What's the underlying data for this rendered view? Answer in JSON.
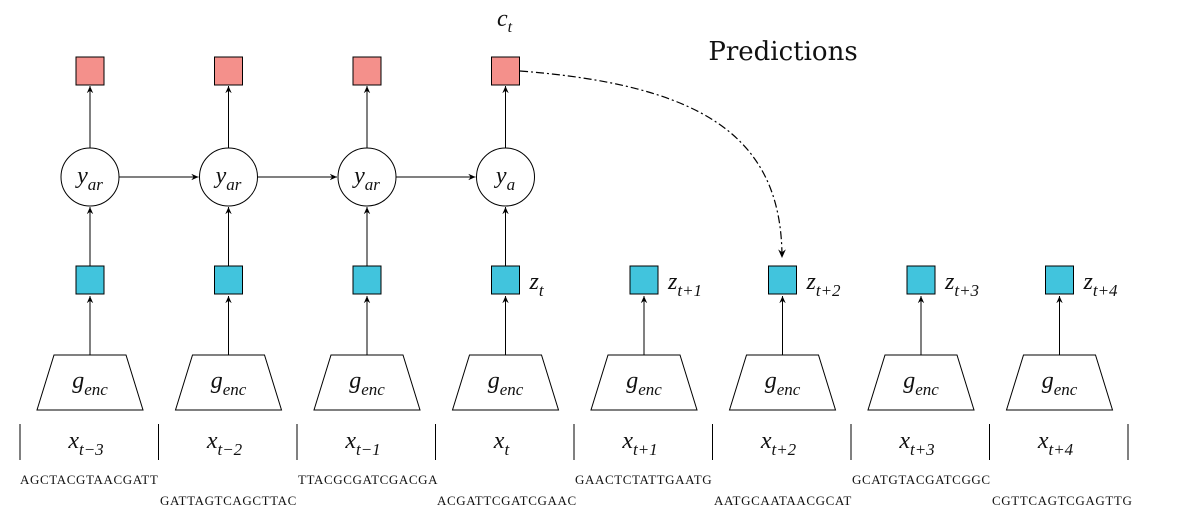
{
  "title": "Predictions",
  "context_label": {
    "base": "c",
    "sub": "t"
  },
  "colors": {
    "prediction": "#f4908b",
    "latent": "#41c4dd",
    "stroke": "#000000"
  },
  "columns": [
    {
      "x_sub": "t−3",
      "enc_base": "g",
      "enc_sub": "enc",
      "ar_base": "y",
      "ar_sub": "ar",
      "has_ar": true,
      "z_label": false
    },
    {
      "x_sub": "t−2",
      "enc_base": "g",
      "enc_sub": "enc",
      "ar_base": "y",
      "ar_sub": "ar",
      "has_ar": true,
      "z_label": false
    },
    {
      "x_sub": "t−1",
      "enc_base": "g",
      "enc_sub": "enc",
      "ar_base": "y",
      "ar_sub": "ar",
      "has_ar": true,
      "z_label": false
    },
    {
      "x_sub": "t",
      "enc_base": "g",
      "enc_sub": "enc",
      "ar_base": "y",
      "ar_sub": "a",
      "has_ar": true,
      "z_label": true,
      "z_sub": "t"
    },
    {
      "x_sub": "t+1",
      "enc_base": "g",
      "enc_sub": "enc",
      "has_ar": false,
      "z_label": true,
      "z_sub": "t+1"
    },
    {
      "x_sub": "t+2",
      "enc_base": "g",
      "enc_sub": "enc",
      "has_ar": false,
      "z_label": true,
      "z_sub": "t+2"
    },
    {
      "x_sub": "t+3",
      "enc_base": "g",
      "enc_sub": "enc",
      "has_ar": false,
      "z_label": true,
      "z_sub": "t+3"
    },
    {
      "x_sub": "t+4",
      "enc_base": "g",
      "enc_sub": "enc",
      "has_ar": false,
      "z_label": true,
      "z_sub": "t+4"
    }
  ],
  "x_base": "x",
  "z_base": "z",
  "sequences_top": [
    "AGCTACGTAACGATT",
    "TTACGCGATCGACGA",
    "GAACTCTATTGAATG",
    "GCATGTACGATCGGC"
  ],
  "sequences_bottom": [
    "GATTAGTCAGCTTAC",
    "ACGATTCGATCGAAC",
    "AATGCAATAACGCAT",
    "CGTTCAGTCGAGTTG"
  ]
}
